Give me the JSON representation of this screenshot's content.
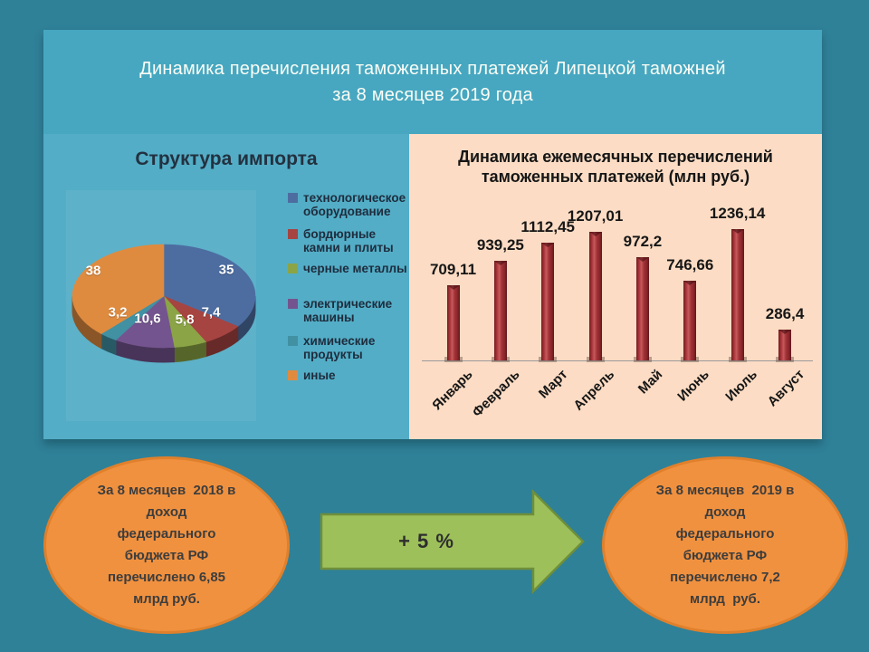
{
  "slide": {
    "title": "Динамика перечисления таможенных платежей Липецкой таможней\nза 8 месяцев 2019 года"
  },
  "colors": {
    "slide_bg": "#2f8198",
    "header_bg": "#47a7c0",
    "left_panel_bg": "#53adc6",
    "right_panel_bg": "#fcdcc4",
    "bar_color": "#a23236",
    "oval_fill": "#f0913f",
    "oval_border": "#e0802c",
    "arrow_fill": "#9dc05a",
    "arrow_border": "#6f8f3a"
  },
  "chart_data": [
    {
      "type": "pie",
      "style": "3d",
      "title": "Структура импорта",
      "labels": [
        "технологическое оборудование",
        "бордюрные камни и плиты",
        "черные металлы",
        "электрические машины",
        "химические продукты",
        "иные"
      ],
      "legend_labels": [
        "технологическое\nоборудование",
        "бордюрные\nкамни и плиты",
        "черные металлы",
        "электрические\nмашины",
        "химические\nпродукты",
        "иные"
      ],
      "values": [
        35,
        7.4,
        5.8,
        10.6,
        3.2,
        38
      ],
      "value_labels": [
        "35",
        "7,4",
        "5,8",
        "10,6",
        "3,2",
        "38"
      ],
      "colors": [
        "#4d6da1",
        "#a64441",
        "#8ba446",
        "#74548e",
        "#4191a3",
        "#df8b3f"
      ],
      "legend_position": "right"
    },
    {
      "type": "bar",
      "title": "Динамика ежемесячных перечислений\nтаможенных платежей (млн руб.)",
      "categories": [
        "Январь",
        "Февраль",
        "Март",
        "Апрель",
        "Май",
        "Июнь",
        "Июль",
        "Август"
      ],
      "values": [
        709.11,
        939.25,
        1112.45,
        1207.01,
        972.2,
        746.66,
        1236.14,
        286.4
      ],
      "value_labels": [
        "709,11",
        "939,25",
        "1112,45",
        "1207,01",
        "972,2",
        "746,66",
        "1236,14",
        "286,4"
      ],
      "bar_color": "#a23236",
      "ylim": [
        0,
        1300
      ],
      "grid": false,
      "legend_position": "none"
    }
  ],
  "footer": {
    "left_oval": "За 8 месяцев  2018 в\nдоход\nфедерального\nбюджета РФ\nперечислено 6,85\nмлрд руб.",
    "arrow_label": "+ 5 %",
    "right_oval": "За 8 месяцев  2019 в\nдоход\nфедерального\nбюджета РФ\nперечислено 7,2\nмлрд  руб."
  }
}
